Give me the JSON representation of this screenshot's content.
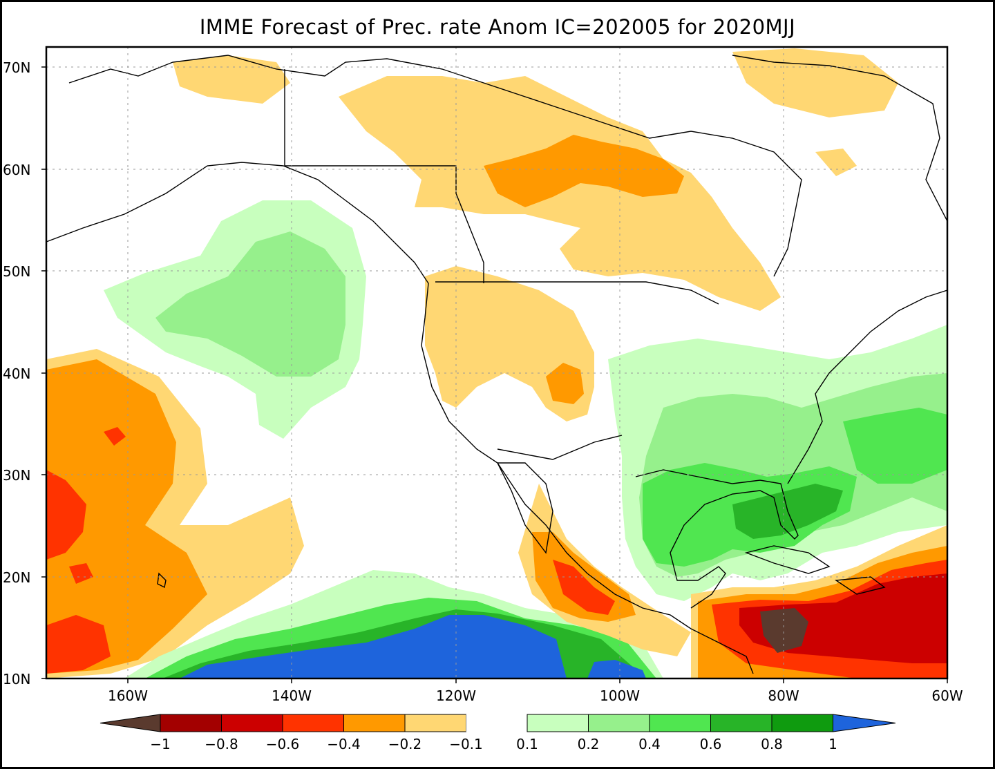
{
  "title": "IMME Forecast of Prec. rate Anom IC=202005 for 2020MJJ",
  "lat_labels": [
    "70N",
    "60N",
    "50N",
    "40N",
    "30N",
    "20N",
    "10N"
  ],
  "lon_labels": [
    "160W",
    "140W",
    "120W",
    "100W",
    "80W",
    "60W"
  ],
  "colorbar": {
    "tick_labels": [
      "−1",
      "−0.8",
      "−0.6",
      "−0.4",
      "−0.2",
      "−0.1",
      "0.1",
      "0.2",
      "0.4",
      "0.6",
      "0.8",
      "1"
    ],
    "colors": [
      "#5a3a2e",
      "#a30000",
      "#cc0000",
      "#ff3300",
      "#ff9900",
      "#ffd773",
      "#ffffff",
      "#c8ffbe",
      "#96f08c",
      "#50e650",
      "#28b428",
      "#0f9b0f",
      "#1e64dc"
    ]
  },
  "colors": {
    "very_dry": "#5a3a2e",
    "dry_dark": "#cc0000",
    "dry_mid": "#ff3300",
    "dry": "#ff9900",
    "dry_light": "#ffd773",
    "wet_light": "#c8ffbe",
    "wet_mid": "#96f08c",
    "wet": "#50e650",
    "wet_dark": "#28b428",
    "very_wet": "#1e64dc"
  }
}
